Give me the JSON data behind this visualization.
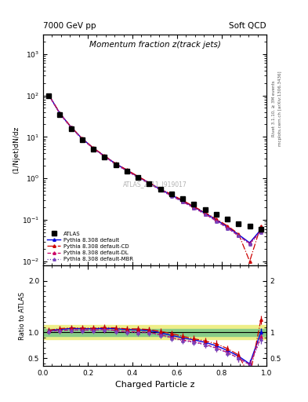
{
  "title_main": "Momentum fraction z(track jets)",
  "header_left": "7000 GeV pp",
  "header_right": "Soft QCD",
  "ylabel_main": "(1/Njet)dN/dz",
  "ylabel_ratio": "Ratio to ATLAS",
  "xlabel": "Charged Particle z",
  "right_label_top": "Rivet 3.1.10, ≥ 3M events",
  "right_label_bot": "mcplots.cern.ch [arXiv:1306.3436]",
  "watermark": "ATLAS_2011_I919017",
  "ylim_main": [
    0.008,
    3000
  ],
  "ylim_ratio": [
    0.35,
    2.3
  ],
  "background_color": "#ffffff",
  "x_atlas": [
    0.025,
    0.075,
    0.125,
    0.175,
    0.225,
    0.275,
    0.325,
    0.375,
    0.425,
    0.475,
    0.525,
    0.575,
    0.625,
    0.675,
    0.725,
    0.775,
    0.825,
    0.875,
    0.925,
    0.975
  ],
  "y_atlas": [
    100.0,
    35.0,
    16.0,
    8.5,
    5.0,
    3.2,
    2.1,
    1.5,
    1.05,
    0.75,
    0.55,
    0.42,
    0.32,
    0.24,
    0.18,
    0.135,
    0.105,
    0.082,
    0.072,
    0.058
  ],
  "y_atlas_err": [
    5.0,
    2.0,
    0.9,
    0.5,
    0.3,
    0.2,
    0.13,
    0.09,
    0.06,
    0.045,
    0.033,
    0.025,
    0.019,
    0.015,
    0.011,
    0.009,
    0.007,
    0.006,
    0.006,
    0.005
  ],
  "x_pythia": [
    0.025,
    0.075,
    0.125,
    0.175,
    0.225,
    0.275,
    0.325,
    0.375,
    0.425,
    0.475,
    0.525,
    0.575,
    0.625,
    0.675,
    0.725,
    0.775,
    0.825,
    0.875,
    0.925,
    0.975
  ],
  "y_default": [
    103.0,
    37.0,
    17.2,
    9.1,
    5.35,
    3.45,
    2.25,
    1.58,
    1.1,
    0.775,
    0.545,
    0.395,
    0.285,
    0.205,
    0.145,
    0.1,
    0.068,
    0.044,
    0.028,
    0.058
  ],
  "y_cd": [
    104.0,
    37.5,
    17.4,
    9.2,
    5.4,
    3.5,
    2.28,
    1.6,
    1.12,
    0.79,
    0.56,
    0.41,
    0.295,
    0.21,
    0.15,
    0.105,
    0.072,
    0.046,
    0.01,
    0.072
  ],
  "y_dl": [
    102.0,
    36.2,
    16.8,
    8.9,
    5.22,
    3.38,
    2.18,
    1.52,
    1.06,
    0.75,
    0.525,
    0.378,
    0.272,
    0.196,
    0.138,
    0.094,
    0.064,
    0.041,
    0.027,
    0.053
  ],
  "y_mbr": [
    101.5,
    36.0,
    16.6,
    8.8,
    5.18,
    3.35,
    2.15,
    1.5,
    1.04,
    0.74,
    0.518,
    0.372,
    0.268,
    0.193,
    0.136,
    0.093,
    0.063,
    0.041,
    0.026,
    0.05
  ],
  "color_atlas": "#000000",
  "color_default": "#0000dd",
  "color_cd": "#cc0000",
  "color_dl": "#cc0066",
  "color_mbr": "#7744bb",
  "green_band_inner": 0.07,
  "green_band_outer": 0.14,
  "green_color": "#88cc88",
  "yellow_color": "#eeee88"
}
